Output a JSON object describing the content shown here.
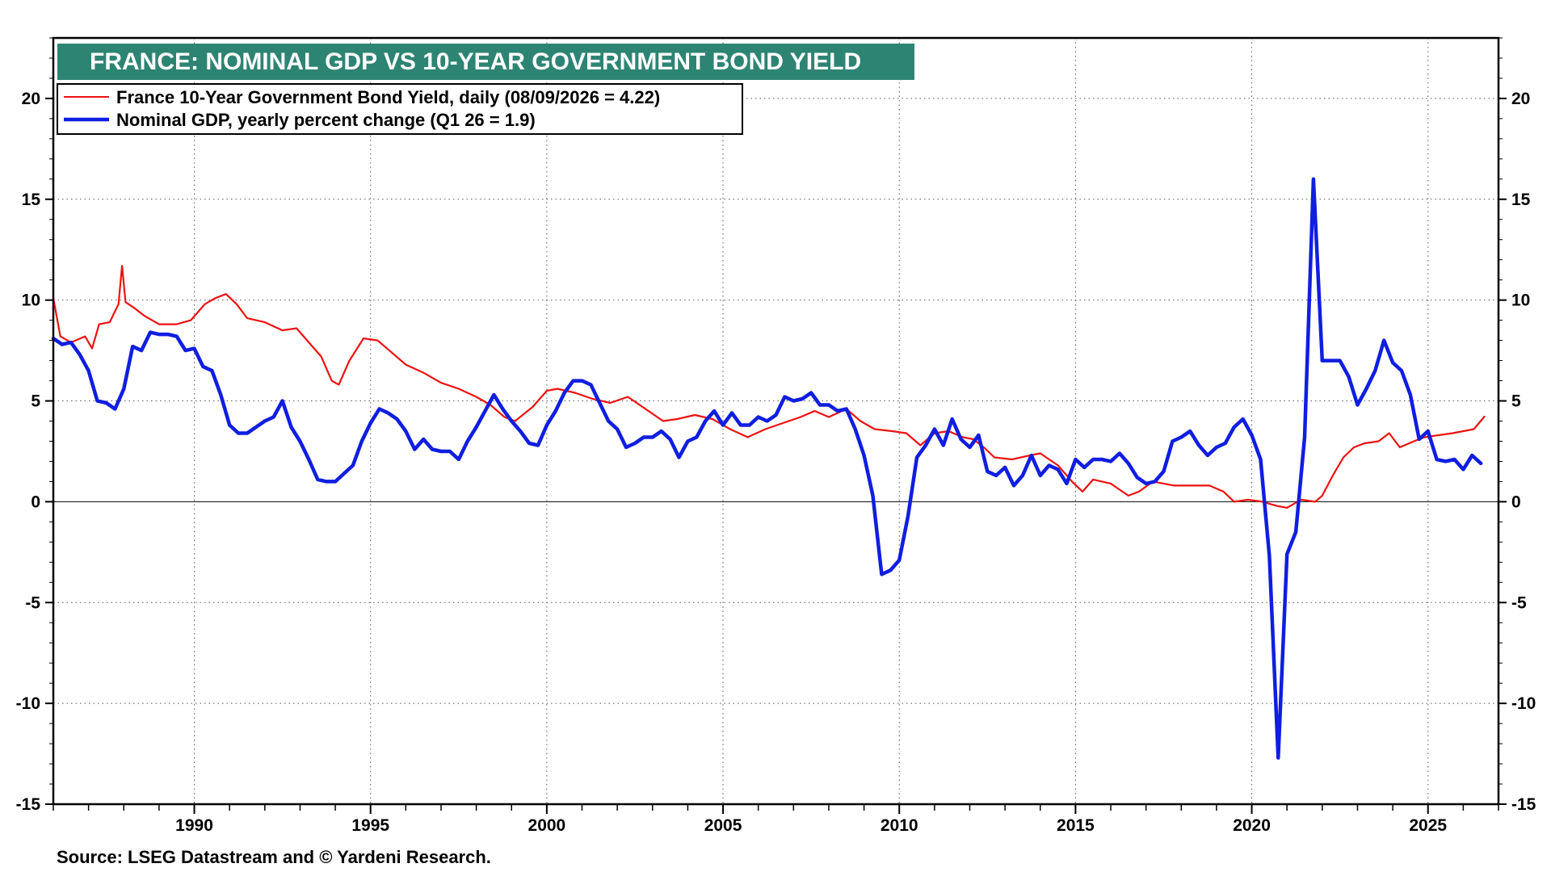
{
  "chart_data": {
    "type": "line",
    "title": "FRANCE: NOMINAL GDP VS 10-YEAR GOVERNMENT BOND YIELD",
    "source": "Source: LSEG Datastream and © Yardeni Research.",
    "xlim": [
      1986.0,
      2027.0
    ],
    "ylim": [
      -15,
      23
    ],
    "y_ticks": [
      -15,
      -10,
      -5,
      0,
      5,
      10,
      15,
      20
    ],
    "x_ticks": [
      1990,
      1995,
      2000,
      2005,
      2010,
      2015,
      2020,
      2025
    ],
    "grid": "dotted",
    "legend_position": "top-left",
    "colors": {
      "title_bg": "#2e8473",
      "bond": "#ee1111",
      "gdp": "#0f1ee0"
    },
    "series": [
      {
        "name": "France 10-Year Government Bond Yield, daily (08/09/2026 = 4.22)",
        "key": "bond",
        "points": [
          [
            1986.0,
            10.1
          ],
          [
            1986.2,
            8.2
          ],
          [
            1986.5,
            7.9
          ],
          [
            1986.9,
            8.2
          ],
          [
            1987.1,
            7.6
          ],
          [
            1987.3,
            8.8
          ],
          [
            1987.6,
            8.9
          ],
          [
            1987.85,
            9.8
          ],
          [
            1987.95,
            11.7
          ],
          [
            1988.05,
            9.9
          ],
          [
            1988.3,
            9.6
          ],
          [
            1988.6,
            9.2
          ],
          [
            1989.0,
            8.8
          ],
          [
            1989.5,
            8.8
          ],
          [
            1989.9,
            9.0
          ],
          [
            1990.3,
            9.8
          ],
          [
            1990.6,
            10.1
          ],
          [
            1990.9,
            10.3
          ],
          [
            1991.2,
            9.8
          ],
          [
            1991.5,
            9.1
          ],
          [
            1992.0,
            8.9
          ],
          [
            1992.5,
            8.5
          ],
          [
            1992.9,
            8.6
          ],
          [
            1993.2,
            8.0
          ],
          [
            1993.6,
            7.2
          ],
          [
            1993.9,
            6.0
          ],
          [
            1994.1,
            5.8
          ],
          [
            1994.4,
            7.0
          ],
          [
            1994.8,
            8.1
          ],
          [
            1995.2,
            8.0
          ],
          [
            1995.6,
            7.4
          ],
          [
            1996.0,
            6.8
          ],
          [
            1996.5,
            6.4
          ],
          [
            1997.0,
            5.9
          ],
          [
            1997.5,
            5.6
          ],
          [
            1998.0,
            5.2
          ],
          [
            1998.4,
            4.8
          ],
          [
            1998.8,
            4.2
          ],
          [
            1999.1,
            4.0
          ],
          [
            1999.6,
            4.7
          ],
          [
            2000.0,
            5.5
          ],
          [
            2000.3,
            5.6
          ],
          [
            2000.8,
            5.4
          ],
          [
            2001.3,
            5.1
          ],
          [
            2001.8,
            4.9
          ],
          [
            2002.3,
            5.2
          ],
          [
            2002.8,
            4.6
          ],
          [
            2003.3,
            4.0
          ],
          [
            2003.7,
            4.1
          ],
          [
            2004.2,
            4.3
          ],
          [
            2004.7,
            4.1
          ],
          [
            2005.2,
            3.6
          ],
          [
            2005.7,
            3.2
          ],
          [
            2006.2,
            3.6
          ],
          [
            2006.7,
            3.9
          ],
          [
            2007.2,
            4.2
          ],
          [
            2007.6,
            4.5
          ],
          [
            2008.0,
            4.2
          ],
          [
            2008.5,
            4.6
          ],
          [
            2008.9,
            4.0
          ],
          [
            2009.3,
            3.6
          ],
          [
            2009.8,
            3.5
          ],
          [
            2010.2,
            3.4
          ],
          [
            2010.6,
            2.8
          ],
          [
            2011.0,
            3.4
          ],
          [
            2011.4,
            3.5
          ],
          [
            2011.8,
            3.2
          ],
          [
            2012.1,
            3.1
          ],
          [
            2012.4,
            2.7
          ],
          [
            2012.7,
            2.2
          ],
          [
            2013.2,
            2.1
          ],
          [
            2013.7,
            2.3
          ],
          [
            2014.0,
            2.4
          ],
          [
            2014.5,
            1.8
          ],
          [
            2014.9,
            1.0
          ],
          [
            2015.2,
            0.5
          ],
          [
            2015.5,
            1.1
          ],
          [
            2016.0,
            0.9
          ],
          [
            2016.5,
            0.3
          ],
          [
            2016.8,
            0.5
          ],
          [
            2017.2,
            1.0
          ],
          [
            2017.8,
            0.8
          ],
          [
            2018.3,
            0.8
          ],
          [
            2018.8,
            0.8
          ],
          [
            2019.2,
            0.5
          ],
          [
            2019.5,
            0.0
          ],
          [
            2019.9,
            0.1
          ],
          [
            2020.3,
            0.0
          ],
          [
            2020.7,
            -0.2
          ],
          [
            2021.0,
            -0.3
          ],
          [
            2021.4,
            0.1
          ],
          [
            2021.8,
            0.0
          ],
          [
            2022.0,
            0.3
          ],
          [
            2022.3,
            1.3
          ],
          [
            2022.6,
            2.2
          ],
          [
            2022.9,
            2.7
          ],
          [
            2023.2,
            2.9
          ],
          [
            2023.6,
            3.0
          ],
          [
            2023.9,
            3.4
          ],
          [
            2024.2,
            2.7
          ],
          [
            2024.6,
            3.0
          ],
          [
            2024.9,
            3.2
          ],
          [
            2025.3,
            3.3
          ],
          [
            2025.7,
            3.4
          ],
          [
            2026.0,
            3.5
          ],
          [
            2026.3,
            3.6
          ],
          [
            2026.6,
            4.22
          ]
        ]
      },
      {
        "name": "Nominal GDP, yearly percent change (Q1 26 = 1.9)",
        "key": "gdp",
        "points": [
          [
            1986.0,
            8.1
          ],
          [
            1986.25,
            7.8
          ],
          [
            1986.5,
            7.9
          ],
          [
            1986.75,
            7.3
          ],
          [
            1987.0,
            6.5
          ],
          [
            1987.25,
            5.0
          ],
          [
            1987.5,
            4.9
          ],
          [
            1987.75,
            4.6
          ],
          [
            1988.0,
            5.6
          ],
          [
            1988.25,
            7.7
          ],
          [
            1988.5,
            7.5
          ],
          [
            1988.75,
            8.4
          ],
          [
            1989.0,
            8.3
          ],
          [
            1989.25,
            8.3
          ],
          [
            1989.5,
            8.2
          ],
          [
            1989.75,
            7.5
          ],
          [
            1990.0,
            7.6
          ],
          [
            1990.25,
            6.7
          ],
          [
            1990.5,
            6.5
          ],
          [
            1990.75,
            5.3
          ],
          [
            1991.0,
            3.8
          ],
          [
            1991.25,
            3.4
          ],
          [
            1991.5,
            3.4
          ],
          [
            1991.75,
            3.7
          ],
          [
            1992.0,
            4.0
          ],
          [
            1992.25,
            4.2
          ],
          [
            1992.5,
            5.0
          ],
          [
            1992.75,
            3.7
          ],
          [
            1993.0,
            3.0
          ],
          [
            1993.25,
            2.1
          ],
          [
            1993.5,
            1.1
          ],
          [
            1993.75,
            1.0
          ],
          [
            1994.0,
            1.0
          ],
          [
            1994.25,
            1.4
          ],
          [
            1994.5,
            1.8
          ],
          [
            1994.75,
            3.0
          ],
          [
            1995.0,
            3.9
          ],
          [
            1995.25,
            4.6
          ],
          [
            1995.5,
            4.4
          ],
          [
            1995.75,
            4.1
          ],
          [
            1996.0,
            3.5
          ],
          [
            1996.25,
            2.6
          ],
          [
            1996.5,
            3.1
          ],
          [
            1996.75,
            2.6
          ],
          [
            1997.0,
            2.5
          ],
          [
            1997.25,
            2.5
          ],
          [
            1997.5,
            2.1
          ],
          [
            1997.75,
            3.0
          ],
          [
            1998.0,
            3.7
          ],
          [
            1998.25,
            4.5
          ],
          [
            1998.5,
            5.3
          ],
          [
            1998.75,
            4.6
          ],
          [
            1999.0,
            4.0
          ],
          [
            1999.25,
            3.5
          ],
          [
            1999.5,
            2.9
          ],
          [
            1999.75,
            2.8
          ],
          [
            2000.0,
            3.8
          ],
          [
            2000.25,
            4.5
          ],
          [
            2000.5,
            5.4
          ],
          [
            2000.75,
            6.0
          ],
          [
            2001.0,
            6.0
          ],
          [
            2001.25,
            5.8
          ],
          [
            2001.5,
            4.9
          ],
          [
            2001.75,
            4.0
          ],
          [
            2002.0,
            3.6
          ],
          [
            2002.25,
            2.7
          ],
          [
            2002.5,
            2.9
          ],
          [
            2002.75,
            3.2
          ],
          [
            2003.0,
            3.2
          ],
          [
            2003.25,
            3.5
          ],
          [
            2003.5,
            3.1
          ],
          [
            2003.75,
            2.2
          ],
          [
            2004.0,
            3.0
          ],
          [
            2004.25,
            3.2
          ],
          [
            2004.5,
            4.0
          ],
          [
            2004.75,
            4.5
          ],
          [
            2005.0,
            3.8
          ],
          [
            2005.25,
            4.4
          ],
          [
            2005.5,
            3.8
          ],
          [
            2005.75,
            3.8
          ],
          [
            2006.0,
            4.2
          ],
          [
            2006.25,
            4.0
          ],
          [
            2006.5,
            4.3
          ],
          [
            2006.75,
            5.2
          ],
          [
            2007.0,
            5.0
          ],
          [
            2007.25,
            5.1
          ],
          [
            2007.5,
            5.4
          ],
          [
            2007.75,
            4.8
          ],
          [
            2008.0,
            4.8
          ],
          [
            2008.25,
            4.5
          ],
          [
            2008.5,
            4.6
          ],
          [
            2008.75,
            3.6
          ],
          [
            2009.0,
            2.3
          ],
          [
            2009.25,
            0.3
          ],
          [
            2009.5,
            -3.6
          ],
          [
            2009.75,
            -3.4
          ],
          [
            2010.0,
            -2.9
          ],
          [
            2010.25,
            -0.7
          ],
          [
            2010.5,
            2.2
          ],
          [
            2010.75,
            2.8
          ],
          [
            2011.0,
            3.6
          ],
          [
            2011.25,
            2.8
          ],
          [
            2011.5,
            4.1
          ],
          [
            2011.75,
            3.1
          ],
          [
            2012.0,
            2.7
          ],
          [
            2012.25,
            3.3
          ],
          [
            2012.5,
            1.5
          ],
          [
            2012.75,
            1.3
          ],
          [
            2013.0,
            1.7
          ],
          [
            2013.25,
            0.8
          ],
          [
            2013.5,
            1.3
          ],
          [
            2013.75,
            2.3
          ],
          [
            2014.0,
            1.3
          ],
          [
            2014.25,
            1.8
          ],
          [
            2014.5,
            1.6
          ],
          [
            2014.75,
            0.9
          ],
          [
            2015.0,
            2.1
          ],
          [
            2015.25,
            1.7
          ],
          [
            2015.5,
            2.1
          ],
          [
            2015.75,
            2.1
          ],
          [
            2016.0,
            2.0
          ],
          [
            2016.25,
            2.4
          ],
          [
            2016.5,
            1.9
          ],
          [
            2016.75,
            1.2
          ],
          [
            2017.0,
            0.9
          ],
          [
            2017.25,
            1.0
          ],
          [
            2017.5,
            1.5
          ],
          [
            2017.75,
            3.0
          ],
          [
            2018.0,
            3.2
          ],
          [
            2018.25,
            3.5
          ],
          [
            2018.5,
            2.8
          ],
          [
            2018.75,
            2.3
          ],
          [
            2019.0,
            2.7
          ],
          [
            2019.25,
            2.9
          ],
          [
            2019.5,
            3.7
          ],
          [
            2019.75,
            4.1
          ],
          [
            2020.0,
            3.3
          ],
          [
            2020.25,
            2.1
          ],
          [
            2020.5,
            -2.7
          ],
          [
            2020.75,
            -12.7
          ],
          [
            2021.0,
            -2.6
          ],
          [
            2021.25,
            -1.5
          ],
          [
            2021.5,
            3.2
          ],
          [
            2021.75,
            16.0
          ],
          [
            2022.0,
            7.0
          ],
          [
            2022.25,
            7.0
          ],
          [
            2022.5,
            7.0
          ],
          [
            2022.75,
            6.2
          ],
          [
            2023.0,
            4.8
          ],
          [
            2023.25,
            5.6
          ],
          [
            2023.5,
            6.5
          ],
          [
            2023.75,
            8.0
          ],
          [
            2024.0,
            6.9
          ],
          [
            2024.25,
            6.5
          ],
          [
            2024.5,
            5.3
          ],
          [
            2024.75,
            3.1
          ],
          [
            2025.0,
            3.5
          ],
          [
            2025.25,
            2.1
          ],
          [
            2025.5,
            2.0
          ],
          [
            2025.75,
            2.1
          ],
          [
            2026.0,
            1.6
          ],
          [
            2026.25,
            2.3
          ],
          [
            2026.5,
            1.9
          ]
        ]
      }
    ]
  }
}
